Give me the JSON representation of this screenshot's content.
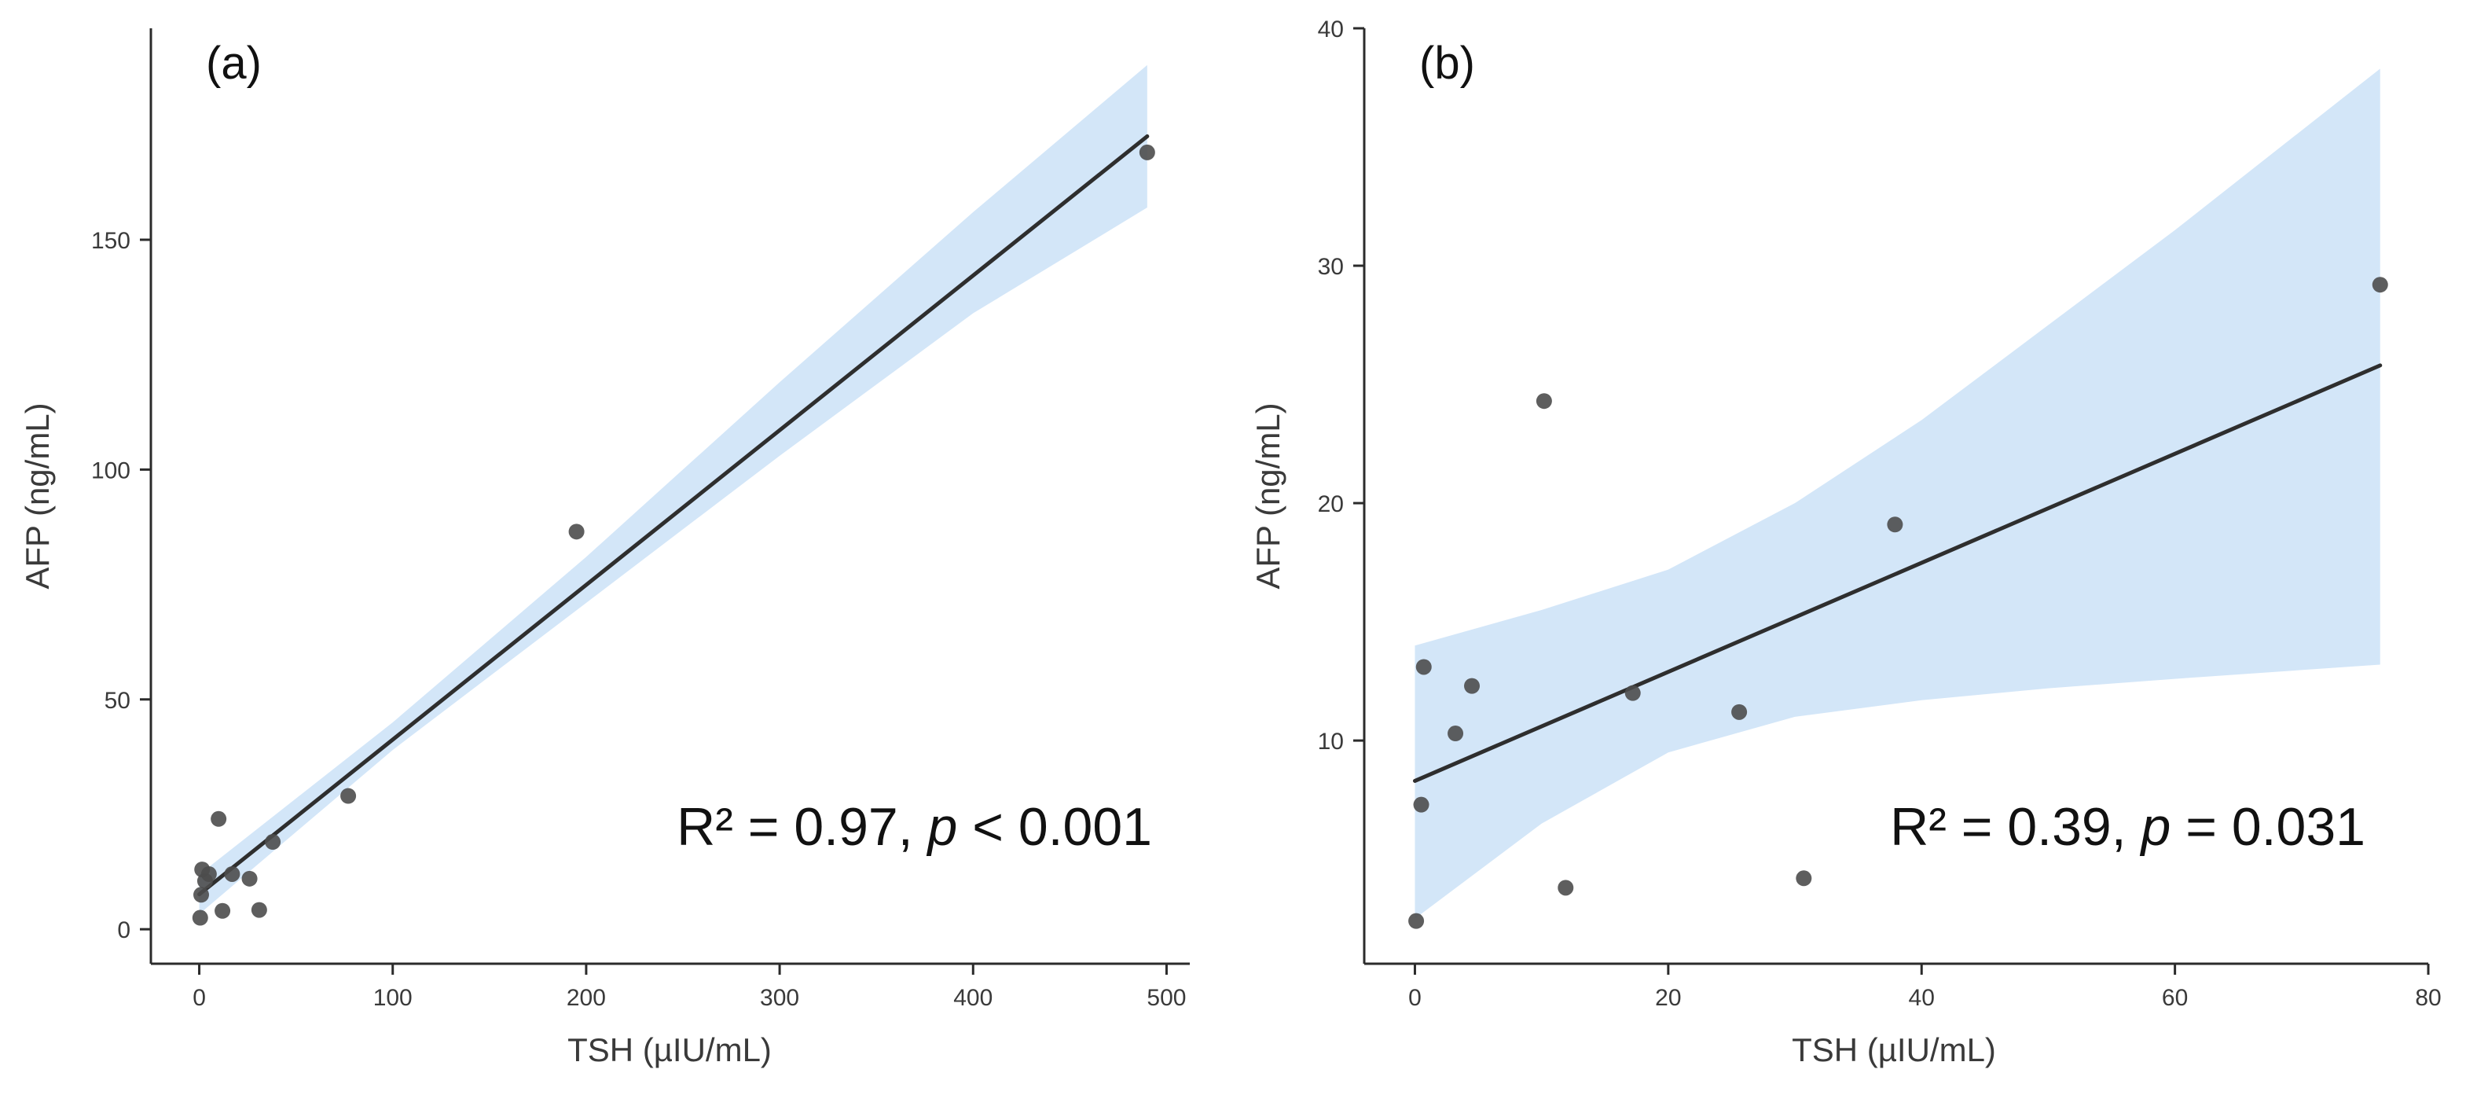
{
  "chart_data": [
    {
      "panel": "(a)",
      "type": "scatter",
      "xlabel": "TSH (µIU/mL)",
      "ylabel": "AFP (ng/mL)",
      "xlim": [
        -25,
        512
      ],
      "ylim": [
        -7.5,
        196
      ],
      "xticks": [
        0,
        100,
        200,
        300,
        400,
        500
      ],
      "yticks": [
        0,
        50,
        100,
        150
      ],
      "grid": false,
      "points": [
        {
          "x": 0.5,
          "y": 2.5
        },
        {
          "x": 1,
          "y": 7.5
        },
        {
          "x": 1.5,
          "y": 13
        },
        {
          "x": 3,
          "y": 10.5
        },
        {
          "x": 5,
          "y": 12
        },
        {
          "x": 10,
          "y": 24
        },
        {
          "x": 12,
          "y": 4
        },
        {
          "x": 17,
          "y": 12
        },
        {
          "x": 26,
          "y": 11
        },
        {
          "x": 31,
          "y": 4.2
        },
        {
          "x": 38,
          "y": 19
        },
        {
          "x": 77,
          "y": 29
        },
        {
          "x": 195,
          "y": 86.5
        },
        {
          "x": 490,
          "y": 169
        }
      ],
      "fit": {
        "x": [
          0,
          490
        ],
        "y": [
          7.6,
          172.5
        ]
      },
      "confidence_band": {
        "x": [
          0,
          100,
          200,
          300,
          400,
          490
        ],
        "lower": [
          3.3,
          39,
          71,
          103,
          134,
          157
        ],
        "upper": [
          11.9,
          45,
          81,
          119,
          156,
          188
        ]
      },
      "annotation": {
        "prefix": "R² = 0.97, ",
        "italic": "p",
        "suffix": " < 0.001"
      }
    },
    {
      "panel": "(b)",
      "type": "scatter",
      "xlabel": "TSH (µIU/mL)",
      "ylabel": "AFP (ng/mL)",
      "xlim": [
        -4,
        80
      ],
      "ylim": [
        0.6,
        40
      ],
      "xticks": [
        0,
        20,
        40,
        60,
        80
      ],
      "yticks": [
        10,
        20,
        30,
        40
      ],
      "grid": false,
      "points": [
        {
          "x": 0.1,
          "y": 2.4
        },
        {
          "x": 0.5,
          "y": 7.3
        },
        {
          "x": 0.7,
          "y": 13.1
        },
        {
          "x": 3.2,
          "y": 10.3
        },
        {
          "x": 4.5,
          "y": 12.3
        },
        {
          "x": 10.2,
          "y": 24.3
        },
        {
          "x": 11.9,
          "y": 3.8
        },
        {
          "x": 17.2,
          "y": 12
        },
        {
          "x": 25.6,
          "y": 11.2
        },
        {
          "x": 30.7,
          "y": 4.2
        },
        {
          "x": 37.9,
          "y": 19.1
        },
        {
          "x": 76.2,
          "y": 29.2
        }
      ],
      "fit": {
        "x": [
          0,
          76.2
        ],
        "y": [
          8.3,
          25.8
        ]
      },
      "confidence_band": {
        "x": [
          0,
          10,
          20,
          30,
          40,
          50,
          60,
          76.2
        ],
        "lower": [
          2.5,
          6.5,
          9.5,
          11,
          11.7,
          12.2,
          12.6,
          13.2
        ],
        "upper": [
          14,
          15.5,
          17.2,
          20,
          23.5,
          27.5,
          31.5,
          38.3
        ]
      },
      "annotation": {
        "prefix": "R² = 0.39, ",
        "italic": "p",
        "suffix": " = 0.031"
      }
    }
  ],
  "colors": {
    "points": "#4d4d4d",
    "fit_line": "#2e2e2e",
    "band": "#d3e6f8",
    "axis": "#2b2b2b"
  }
}
